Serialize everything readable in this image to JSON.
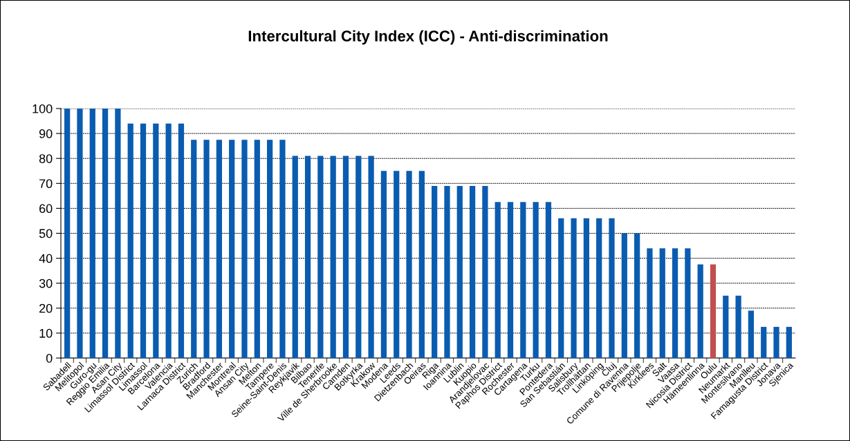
{
  "chart_data": {
    "type": "bar",
    "title": "Intercultural City Index (ICC) - Anti-discrimination",
    "categories": [
      "Sabadell",
      "Melitopol",
      "Guro-gu",
      "Reggio Emilia",
      "Asan City",
      "Limassol District",
      "Limassol",
      "Barcelona",
      "Valencia",
      "Larnaca District",
      "Zurich",
      "Bradford",
      "Manchester",
      "Montreal",
      "Ansan City",
      "Melton",
      "Tampere",
      "Seine-Saint-Denis",
      "Reykjavik",
      "Bilbao",
      "Tenerife",
      "Ville de Sherbrooke",
      "Camden",
      "Botkyrka",
      "Krakow",
      "Modena",
      "Leeds",
      "Dietzenbach",
      "Oeiras",
      "Riga",
      "Ioannina",
      "Lublin",
      "Kuopio",
      "Arandjelovac",
      "Paphos District",
      "Rochester",
      "Cartagena",
      "Turku",
      "Pontedera",
      "San Sebastián",
      "Salisbury",
      "Trollhättan",
      "Linköping",
      "Cluj",
      "Comune di Ravenna",
      "Prijepolje",
      "Kirklees",
      "Salt",
      "Vaasa",
      "Nicosia District",
      "Hämeenlinna",
      "Oulu",
      "Neumarkt",
      "Montesilvano",
      "Manlleu",
      "Famagusta District",
      "Jonava",
      "Sjenica"
    ],
    "values": [
      100,
      100,
      100,
      100,
      100,
      94,
      94,
      94,
      94,
      94,
      87.5,
      87.5,
      87.5,
      87.5,
      87.5,
      87.5,
      87.5,
      87.5,
      81,
      81,
      81,
      81,
      81,
      81,
      81,
      75,
      75,
      75,
      75,
      69,
      69,
      69,
      69,
      69,
      62.5,
      62.5,
      62.5,
      62.5,
      62.5,
      56,
      56,
      56,
      56,
      56,
      50,
      50,
      44,
      44,
      44,
      44,
      37.5,
      37.5,
      25,
      25,
      19,
      12.5,
      12.5,
      12.5
    ],
    "colors": [
      "#0a5cb0",
      "#0a5cb0",
      "#0a5cb0",
      "#0a5cb0",
      "#0a5cb0",
      "#0a5cb0",
      "#0a5cb0",
      "#0a5cb0",
      "#0a5cb0",
      "#0a5cb0",
      "#0a5cb0",
      "#0a5cb0",
      "#0a5cb0",
      "#0a5cb0",
      "#0a5cb0",
      "#0a5cb0",
      "#0a5cb0",
      "#0a5cb0",
      "#0a5cb0",
      "#0a5cb0",
      "#0a5cb0",
      "#0a5cb0",
      "#0a5cb0",
      "#0a5cb0",
      "#0a5cb0",
      "#0a5cb0",
      "#0a5cb0",
      "#0a5cb0",
      "#0a5cb0",
      "#0a5cb0",
      "#0a5cb0",
      "#0a5cb0",
      "#0a5cb0",
      "#0a5cb0",
      "#0a5cb0",
      "#0a5cb0",
      "#0a5cb0",
      "#0a5cb0",
      "#0a5cb0",
      "#0a5cb0",
      "#0a5cb0",
      "#0a5cb0",
      "#0a5cb0",
      "#0a5cb0",
      "#0a5cb0",
      "#0a5cb0",
      "#0a5cb0",
      "#0a5cb0",
      "#0a5cb0",
      "#0a5cb0",
      "#0a5cb0",
      "#c0504d",
      "#0a5cb0",
      "#0a5cb0",
      "#0a5cb0",
      "#0a5cb0",
      "#0a5cb0",
      "#0a5cb0"
    ],
    "ylim": [
      0,
      100
    ],
    "yticks": [
      0,
      10,
      20,
      30,
      40,
      50,
      60,
      70,
      80,
      90,
      100
    ],
    "grid": "y"
  }
}
